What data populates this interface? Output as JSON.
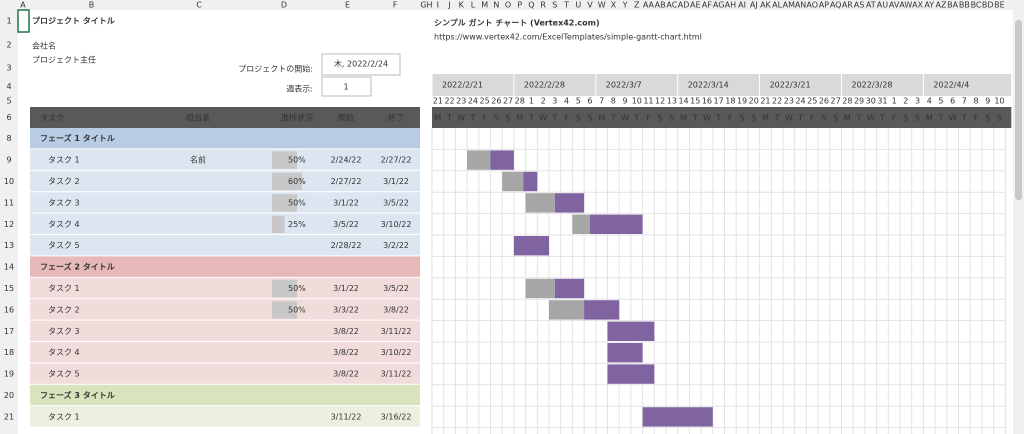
{
  "header": {
    "title": "プロジェクト タイトル",
    "company": "会社名",
    "lead": "プロジェクト主任",
    "start_label": "プロジェクトの開始:",
    "start_value": "木, 2022/2/24",
    "week_label": "週表示:",
    "week_value": 1
  },
  "gantt": {
    "title": "シンプル ガント チャート (Vertex42.com)",
    "url": "https://www.vertex42.com/ExcelTemplates/simple-gantt-chart.html",
    "weeks": [
      "2022/2/21",
      "2022/2/28",
      "2022/3/7",
      "2022/3/14",
      "2022/3/21",
      "2022/3/28",
      "2022/4/4"
    ],
    "days": [
      21,
      22,
      23,
      24,
      25,
      26,
      27,
      28,
      1,
      2,
      3,
      4,
      5,
      6,
      7,
      8,
      9,
      10,
      11,
      12,
      13,
      14,
      15,
      16,
      17,
      18,
      19,
      20,
      21,
      22,
      23,
      24,
      25,
      26,
      27,
      28,
      29,
      30,
      31,
      1,
      2,
      3,
      4,
      5,
      6,
      7,
      8,
      9,
      10
    ],
    "weekdays": [
      "M",
      "T",
      "W",
      "T",
      "F",
      "S",
      "S"
    ]
  },
  "sheet": {
    "col_letters": [
      "A",
      "B",
      "C",
      "D",
      "E",
      "F",
      "G",
      "H"
    ],
    "day_col_letters": [
      "I",
      "J",
      "K",
      "L",
      "M",
      "N",
      "O",
      "P",
      "Q",
      "R",
      "S",
      "T",
      "U",
      "V",
      "W",
      "X",
      "Y",
      "Z",
      "AA",
      "AB",
      "AC",
      "AD",
      "AE",
      "AF",
      "AG",
      "AH",
      "AI",
      "AJ",
      "AK",
      "AL",
      "AM",
      "AN",
      "AO",
      "AP",
      "AQ",
      "AR",
      "AS",
      "AT",
      "AU",
      "AV",
      "AW",
      "AX",
      "AY",
      "AZ",
      "BA",
      "BB",
      "BC",
      "BD",
      "BE"
    ],
    "row_numbers": [
      1,
      2,
      3,
      4,
      5,
      6,
      8,
      9,
      10,
      11,
      12,
      13,
      14,
      15,
      16,
      17,
      18,
      19,
      20,
      21
    ]
  },
  "table": {
    "columns": [
      "タスク",
      "担当者",
      "進捗状況",
      "開始",
      "終了"
    ],
    "phases": [
      {
        "title": "フェーズ 1 タイトル",
        "tasks": [
          {
            "name": "タスク 1",
            "owner": "名前",
            "progress": 50,
            "progress_label": "50%",
            "start": "2/24/22",
            "end": "2/27/22"
          },
          {
            "name": "タスク 2",
            "progress": 60,
            "progress_label": "60%",
            "start": "2/27/22",
            "end": "3/1/22"
          },
          {
            "name": "タスク 3",
            "progress": 50,
            "progress_label": "50%",
            "start": "3/1/22",
            "end": "3/5/22"
          },
          {
            "name": "タスク 4",
            "progress": 25,
            "progress_label": "25%",
            "start": "3/5/22",
            "end": "3/10/22"
          },
          {
            "name": "タスク 5",
            "start": "2/28/22",
            "end": "3/2/22"
          }
        ]
      },
      {
        "title": "フェーズ 2 タイトル",
        "tasks": [
          {
            "name": "タスク 1",
            "progress": 50,
            "progress_label": "50%",
            "start": "3/1/22",
            "end": "3/5/22"
          },
          {
            "name": "タスク 2",
            "progress": 50,
            "progress_label": "50%",
            "start": "3/3/22",
            "end": "3/8/22"
          },
          {
            "name": "タスク 3",
            "start": "3/8/22",
            "end": "3/11/22"
          },
          {
            "name": "タスク 4",
            "start": "3/8/22",
            "end": "3/10/22"
          },
          {
            "name": "タスク 5",
            "start": "3/8/22",
            "end": "3/11/22"
          }
        ]
      },
      {
        "title": "フェーズ 3 タイトル",
        "tasks": [
          {
            "name": "タスク 1",
            "start": "3/11/22",
            "end": "3/16/22"
          }
        ]
      }
    ]
  }
}
